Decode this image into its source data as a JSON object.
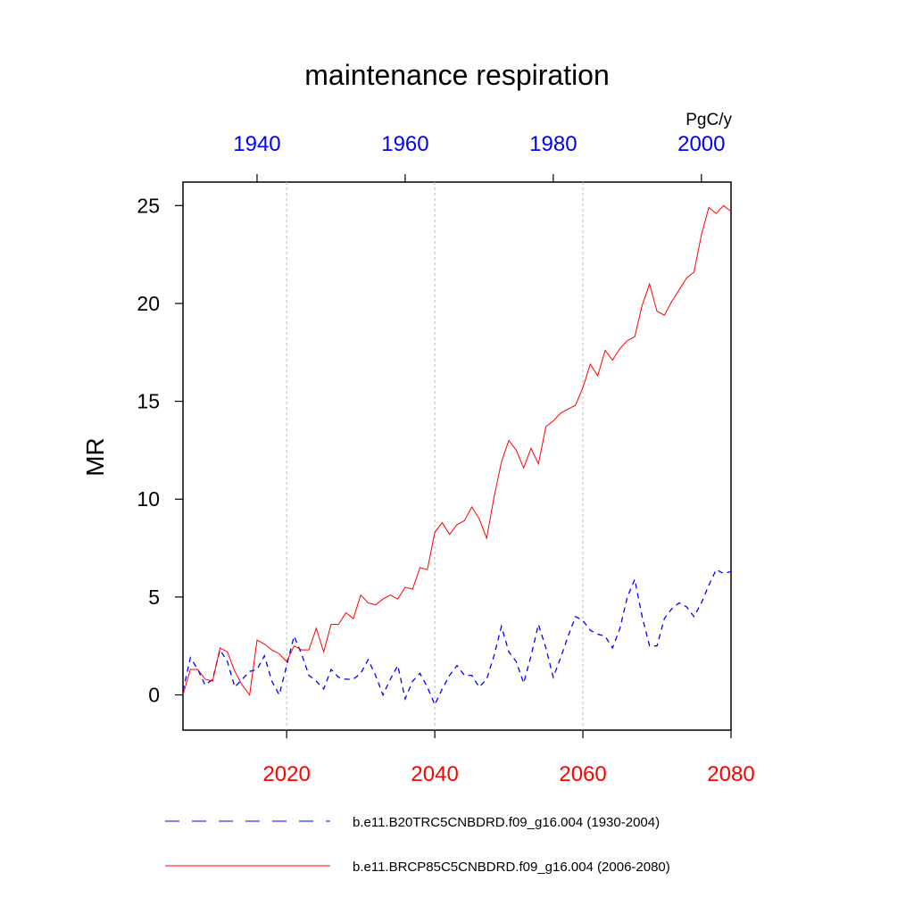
{
  "chart_data": {
    "type": "line",
    "title": "maintenance respiration",
    "units": "PgC/y",
    "ylabel": "MR",
    "xlim": [
      2006,
      2080
    ],
    "xticks": [
      2020,
      2040,
      2060,
      2080
    ],
    "x2lim": [
      1930,
      2004
    ],
    "x2ticks": [
      1940,
      1960,
      1980,
      2000
    ],
    "ylim": [
      -1.8,
      26.2
    ],
    "yticks": [
      0,
      5,
      10,
      15,
      20,
      25
    ],
    "grid": true,
    "series": [
      {
        "name": "b.e11.B20TRC5CNBDRD.f09_g16.004 (1930-2004)",
        "color": "#0000ff",
        "dash": true,
        "axis": "x2",
        "x": [
          1930,
          1931,
          1932,
          1933,
          1934,
          1935,
          1936,
          1937,
          1938,
          1939,
          1940,
          1941,
          1942,
          1943,
          1944,
          1945,
          1946,
          1947,
          1948,
          1949,
          1950,
          1951,
          1952,
          1953,
          1954,
          1955,
          1956,
          1957,
          1958,
          1959,
          1960,
          1961,
          1962,
          1963,
          1964,
          1965,
          1966,
          1967,
          1968,
          1969,
          1970,
          1971,
          1972,
          1973,
          1974,
          1975,
          1976,
          1977,
          1978,
          1979,
          1980,
          1981,
          1982,
          1983,
          1984,
          1985,
          1986,
          1987,
          1988,
          1989,
          1990,
          1991,
          1992,
          1993,
          1994,
          1995,
          1996,
          1997,
          1998,
          1999,
          2000,
          2001,
          2002,
          2003,
          2004
        ],
        "values": [
          0.2,
          1.9,
          1.3,
          0.5,
          0.8,
          2.3,
          1.7,
          0.4,
          0.8,
          1.2,
          1.3,
          2.0,
          0.7,
          0.0,
          1.5,
          3.0,
          2.1,
          1.0,
          0.7,
          0.3,
          1.3,
          0.9,
          0.8,
          0.8,
          1.1,
          1.8,
          1.0,
          0.0,
          0.8,
          1.5,
          -0.2,
          0.7,
          1.1,
          0.4,
          -0.5,
          0.3,
          1.0,
          1.5,
          1.0,
          1.0,
          0.4,
          0.8,
          2.0,
          3.5,
          2.2,
          1.7,
          0.6,
          2.0,
          3.6,
          2.4,
          0.9,
          1.9,
          3.0,
          4.0,
          3.8,
          3.3,
          3.1,
          3.0,
          2.4,
          3.4,
          5.0,
          5.9,
          4.0,
          2.5,
          2.5,
          3.9,
          4.4,
          4.7,
          4.5,
          4.0,
          4.7,
          5.6,
          6.4,
          6.2,
          6.3
        ]
      },
      {
        "name": "b.e11.BRCP85C5CNBDRD.f09_g16.004 (2006-2080)",
        "color": "#ff0000",
        "dash": false,
        "axis": "x",
        "x": [
          2006,
          2007,
          2008,
          2009,
          2010,
          2011,
          2012,
          2013,
          2014,
          2015,
          2016,
          2017,
          2018,
          2019,
          2020,
          2021,
          2022,
          2023,
          2024,
          2025,
          2026,
          2027,
          2028,
          2029,
          2030,
          2031,
          2032,
          2033,
          2034,
          2035,
          2036,
          2037,
          2038,
          2039,
          2040,
          2041,
          2042,
          2043,
          2044,
          2045,
          2046,
          2047,
          2048,
          2049,
          2050,
          2051,
          2052,
          2053,
          2054,
          2055,
          2056,
          2057,
          2058,
          2059,
          2060,
          2061,
          2062,
          2063,
          2064,
          2065,
          2066,
          2067,
          2068,
          2069,
          2070,
          2071,
          2072,
          2073,
          2074,
          2075,
          2076,
          2077,
          2078,
          2079,
          2080
        ],
        "values": [
          0.0,
          1.3,
          1.3,
          0.8,
          0.7,
          2.4,
          2.2,
          1.2,
          0.5,
          0.0,
          2.8,
          2.6,
          2.3,
          2.1,
          1.7,
          2.5,
          2.3,
          2.3,
          3.4,
          2.2,
          3.6,
          3.6,
          4.2,
          3.9,
          5.1,
          4.7,
          4.6,
          4.9,
          5.1,
          4.9,
          5.5,
          5.4,
          6.5,
          6.4,
          8.3,
          8.8,
          8.2,
          8.7,
          8.9,
          9.6,
          9.0,
          8.0,
          10.1,
          11.9,
          13.0,
          12.5,
          11.6,
          12.6,
          11.8,
          13.7,
          14.0,
          14.4,
          14.6,
          14.8,
          15.7,
          16.9,
          16.3,
          17.6,
          17.1,
          17.7,
          18.1,
          18.3,
          19.9,
          21.0,
          19.6,
          19.4,
          20.1,
          20.7,
          21.3,
          21.6,
          23.5,
          24.9,
          24.6,
          25.0,
          24.7
        ]
      }
    ]
  }
}
